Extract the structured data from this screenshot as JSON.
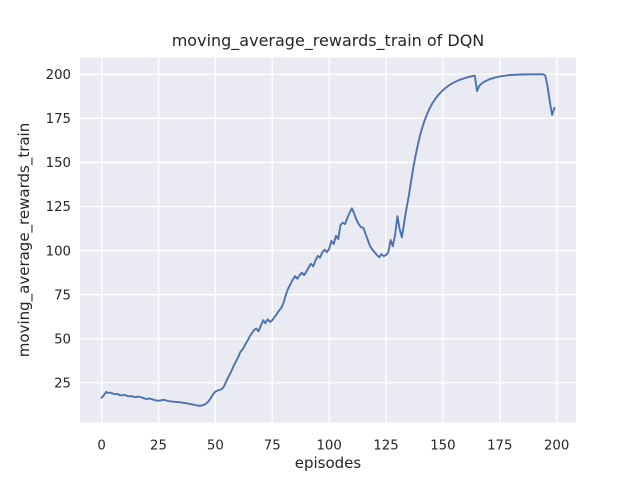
{
  "figure": {
    "background": "#ffffff"
  },
  "chart_data": {
    "type": "line",
    "title": "moving_average_rewards_train of DQN",
    "xlabel": "episodes",
    "ylabel": "moving_average_rewards_train",
    "style": "seaborn-darkgrid",
    "plot_bg": "#eaeaf2",
    "grid_color": "#ffffff",
    "text_color": "#262626",
    "grid": true,
    "legend": "none",
    "xticks": [
      0,
      25,
      50,
      75,
      100,
      125,
      150,
      175,
      200
    ],
    "yticks": [
      25,
      50,
      75,
      100,
      125,
      150,
      175,
      200
    ],
    "xlim": [
      -9.5,
      208.5
    ],
    "ylim": [
      2.5,
      209.5
    ],
    "x_start": 0,
    "x_step": 1,
    "series": [
      {
        "name": "moving_average_rewards_train",
        "color": "#4c72b0",
        "values": [
          16.5,
          18.0,
          19.8,
          19.2,
          19.4,
          18.8,
          18.5,
          18.7,
          18.0,
          17.8,
          18.2,
          17.6,
          17.3,
          17.5,
          17.0,
          16.8,
          17.2,
          16.9,
          16.5,
          16.0,
          15.8,
          16.1,
          15.7,
          15.3,
          14.9,
          14.8,
          15.0,
          15.3,
          15.1,
          14.7,
          14.5,
          14.4,
          14.2,
          14.1,
          14.0,
          13.8,
          13.6,
          13.4,
          13.2,
          12.9,
          12.7,
          12.4,
          12.1,
          11.9,
          12.1,
          12.5,
          13.3,
          14.5,
          16.3,
          18.5,
          20.0,
          20.6,
          21.0,
          21.5,
          23.5,
          26.5,
          29.0,
          31.5,
          34.5,
          37.0,
          39.5,
          42.5,
          44.0,
          46.5,
          48.5,
          51.0,
          53.0,
          55.0,
          55.7,
          54.2,
          57.5,
          60.5,
          58.8,
          61.0,
          59.5,
          60.5,
          62.2,
          64.0,
          66.0,
          67.5,
          70.5,
          75.0,
          78.5,
          81.0,
          83.5,
          85.5,
          84.0,
          86.0,
          87.5,
          86.0,
          88.0,
          90.5,
          92.5,
          91.0,
          94.5,
          97.0,
          96.0,
          99.0,
          100.5,
          99.0,
          101.0,
          105.5,
          103.7,
          108.4,
          106.5,
          114.5,
          115.8,
          115.0,
          118.5,
          121.5,
          124.0,
          121.0,
          117.5,
          115.0,
          113.2,
          113.0,
          109.5,
          106.0,
          102.5,
          100.5,
          99.0,
          97.5,
          96.2,
          98.0,
          96.8,
          97.5,
          99.0,
          106.0,
          102.5,
          109.0,
          119.5,
          112.0,
          107.5,
          116.0,
          124.0,
          131.0,
          139.0,
          147.0,
          154.0,
          160.0,
          165.5,
          170.0,
          174.0,
          177.3,
          180.2,
          182.7,
          184.8,
          186.7,
          188.3,
          189.7,
          191.0,
          192.1,
          193.1,
          194.0,
          194.8,
          195.5,
          196.1,
          196.7,
          197.2,
          197.6,
          198.0,
          198.4,
          198.7,
          199.0,
          199.3,
          190.5,
          193.5,
          194.8,
          195.7,
          196.3,
          196.9,
          197.4,
          197.8,
          198.2,
          198.5,
          198.8,
          199.0,
          199.2,
          199.4,
          199.5,
          199.6,
          199.7,
          199.8,
          199.8,
          199.9,
          199.9,
          199.9,
          200.0,
          200.0,
          200.0,
          200.0,
          200.0,
          200.0,
          200.0,
          200.0,
          199.3,
          193.0,
          184.5,
          177.0,
          181.0
        ]
      }
    ]
  }
}
